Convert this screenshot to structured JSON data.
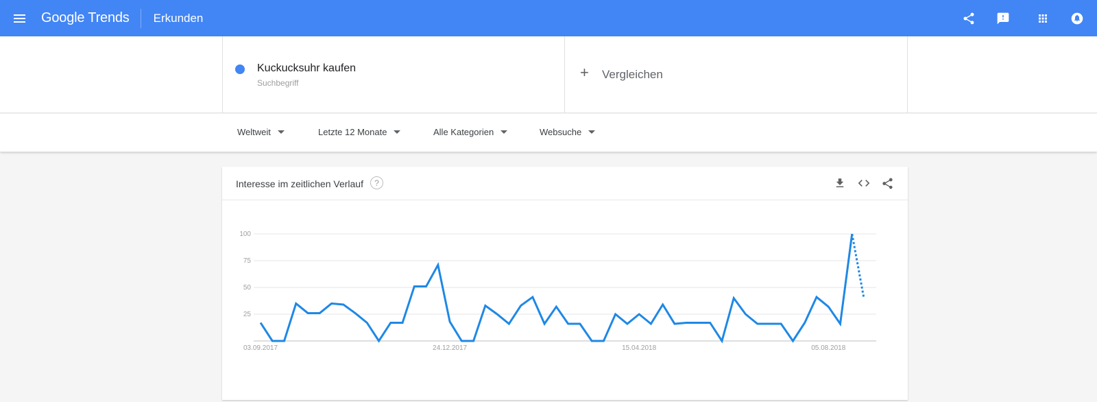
{
  "header": {
    "logo_google": "Google",
    "logo_trends": "Trends",
    "section": "Erkunden",
    "bar_color": "#4285f4",
    "icons": [
      "menu-icon",
      "share-icon",
      "feedback-icon",
      "apps-icon",
      "notifications-icon"
    ]
  },
  "search": {
    "term": "Kuckucksuhr kaufen",
    "term_type": "Suchbegriff",
    "term_color": "#4285f4",
    "compare_label": "Vergleichen"
  },
  "filters": {
    "region": "Weltweit",
    "time": "Letzte 12 Monate",
    "category": "Alle Kategorien",
    "search_type": "Websuche"
  },
  "card": {
    "title": "Interesse im zeitlichen Verlauf",
    "help_glyph": "?",
    "icons": [
      "download-icon",
      "embed-icon",
      "share-icon"
    ]
  },
  "chart_data": {
    "type": "line",
    "title": "Interesse im zeitlichen Verlauf",
    "xlabel": "",
    "ylabel": "",
    "ylim": [
      0,
      100
    ],
    "yticks": [
      "100",
      "75",
      "50",
      "25"
    ],
    "xtick_labels": [
      "03.09.2017",
      "24.12.2017",
      "15.04.2018",
      "05.08.2018"
    ],
    "xtick_indices": [
      0,
      16,
      32,
      48
    ],
    "grid": true,
    "line_color": "#1e88e5",
    "series": [
      {
        "name": "Kuckucksuhr kaufen",
        "values": [
          17,
          0,
          0,
          35,
          26,
          26,
          35,
          34,
          26,
          17,
          0,
          17,
          17,
          51,
          51,
          71,
          18,
          0,
          0,
          33,
          25,
          16,
          33,
          41,
          16,
          32,
          16,
          16,
          0,
          0,
          25,
          16,
          25,
          16,
          34,
          16,
          17,
          17,
          17,
          0,
          40,
          25,
          16,
          16,
          16,
          0,
          17,
          41,
          32,
          16,
          100,
          40
        ],
        "partial_from_index": 50
      }
    ]
  }
}
